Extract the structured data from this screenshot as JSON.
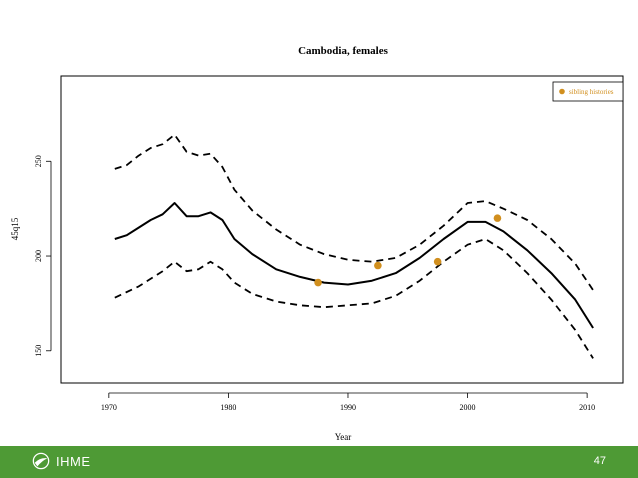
{
  "chart_data": {
    "type": "line",
    "title": "Cambodia, females",
    "xlabel": "Year",
    "ylabel": "45q15",
    "xlim": [
      1966,
      2013
    ],
    "ylim": [
      133,
      295
    ],
    "x_ticks": [
      1970,
      1980,
      1990,
      2000,
      2010
    ],
    "y_ticks": [
      150,
      200,
      250
    ],
    "grid": false,
    "series": [
      {
        "style": "dashed-upper",
        "x": [
          1970.5,
          1971.5,
          1972.5,
          1973.5,
          1974.5,
          1975.5,
          1976.5,
          1977.5,
          1978.5,
          1979.5,
          1980.5,
          1982,
          1984,
          1986,
          1988,
          1990,
          1992,
          1994,
          1996,
          1998,
          2000,
          2001.5,
          2003,
          2005,
          2007,
          2009,
          2010.5
        ],
        "values": [
          246,
          248,
          253,
          257,
          259,
          264,
          255,
          253,
          254,
          247,
          235,
          224,
          214,
          206,
          201,
          198,
          197,
          199,
          206,
          216,
          228,
          229,
          225,
          219,
          209,
          196,
          182
        ]
      },
      {
        "style": "solid-estimate",
        "x": [
          1970.5,
          1971.5,
          1972.5,
          1973.5,
          1974.5,
          1975.5,
          1976.5,
          1977.5,
          1978.5,
          1979.5,
          1980.5,
          1982,
          1984,
          1986,
          1988,
          1990,
          1992,
          1994,
          1996,
          1998,
          2000,
          2001.5,
          2003,
          2005,
          2007,
          2009,
          2010.5
        ],
        "values": [
          209,
          211,
          215,
          219,
          222,
          228,
          221,
          221,
          223,
          219,
          209,
          201,
          193,
          189,
          186,
          185,
          187,
          191,
          199,
          209,
          218,
          218,
          213,
          203,
          191,
          177,
          162
        ]
      },
      {
        "style": "dashed-lower",
        "x": [
          1970.5,
          1971.5,
          1972.5,
          1973.5,
          1974.5,
          1975.5,
          1976.5,
          1977.5,
          1978.5,
          1979.5,
          1980.5,
          1982,
          1984,
          1986,
          1988,
          1990,
          1992,
          1994,
          1996,
          1998,
          2000,
          2001.5,
          2003,
          2005,
          2007,
          2009,
          2010.5
        ],
        "values": [
          178,
          181,
          184,
          188,
          192,
          197,
          192,
          193,
          197,
          193,
          186,
          180,
          176,
          174,
          173,
          174,
          175,
          179,
          187,
          197,
          206,
          209,
          203,
          191,
          177,
          161,
          146
        ]
      },
      {
        "name": "sibling histories",
        "style": "points",
        "x": [
          1987.5,
          1992.5,
          1997.5,
          2002.5
        ],
        "values": [
          186,
          195,
          197,
          220
        ]
      }
    ],
    "legend": {
      "placement": "top-right",
      "label": "sibling histories"
    },
    "colors": {
      "line": "#000000",
      "points": "#d18f1e",
      "legend_text": "#d18f1e"
    }
  },
  "footer": {
    "logo_text": "IHME",
    "page_number": "47",
    "background_color": "#4e9a35",
    "logo_icon": "ihme-logo-icon"
  }
}
